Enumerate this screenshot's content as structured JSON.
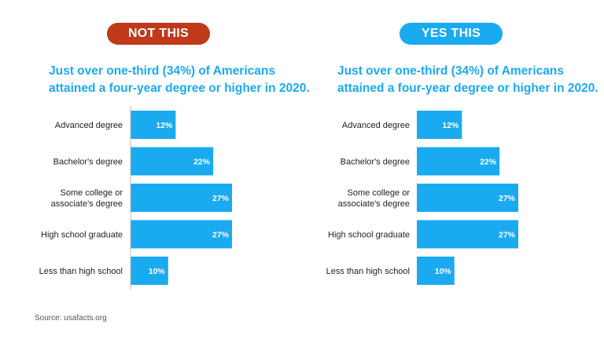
{
  "panels": [
    {
      "badge": "NOT THIS",
      "badge_color": "#c0391b",
      "headline_lines": [
        "Just over one-third (34%) of Americans",
        "attained a four-year degree or higher in 2020."
      ],
      "show_axis_line": true
    },
    {
      "badge": "YES THIS",
      "badge_color": "#1aaaf0",
      "headline_lines": [
        "Just over one-third (34%) of Americans",
        "attained a four-year degree or higher in 2020."
      ],
      "show_axis_line": false
    }
  ],
  "source": "Source: usafacts.org",
  "bar_color": "#1aaaf0",
  "chart_data": [
    {
      "type": "bar",
      "orientation": "horizontal",
      "categories": [
        [
          "Advanced degree"
        ],
        [
          "Bachelor's degree"
        ],
        [
          "Some college or",
          "associate's degree"
        ],
        [
          "High school graduate"
        ],
        [
          "Less than high school"
        ]
      ],
      "values": [
        12,
        22,
        27,
        27,
        10
      ],
      "value_labels": [
        "12%",
        "22%",
        "27%",
        "27%",
        "10%"
      ],
      "title": "Just over one-third (34%) of Americans attained a four-year degree or higher in 2020.",
      "xlim": [
        0,
        27
      ],
      "grid": false
    },
    {
      "type": "bar",
      "orientation": "horizontal",
      "categories": [
        [
          "Advanced degree"
        ],
        [
          "Bachelor's degree"
        ],
        [
          "Some college or",
          "associate's degree"
        ],
        [
          "High school graduate"
        ],
        [
          "Less than high school"
        ]
      ],
      "values": [
        12,
        22,
        27,
        27,
        10
      ],
      "value_labels": [
        "12%",
        "22%",
        "27%",
        "27%",
        "10%"
      ],
      "title": "Just over one-third (34%) of Americans attained a four-year degree or higher in 2020.",
      "xlim": [
        0,
        27
      ],
      "grid": false
    }
  ]
}
